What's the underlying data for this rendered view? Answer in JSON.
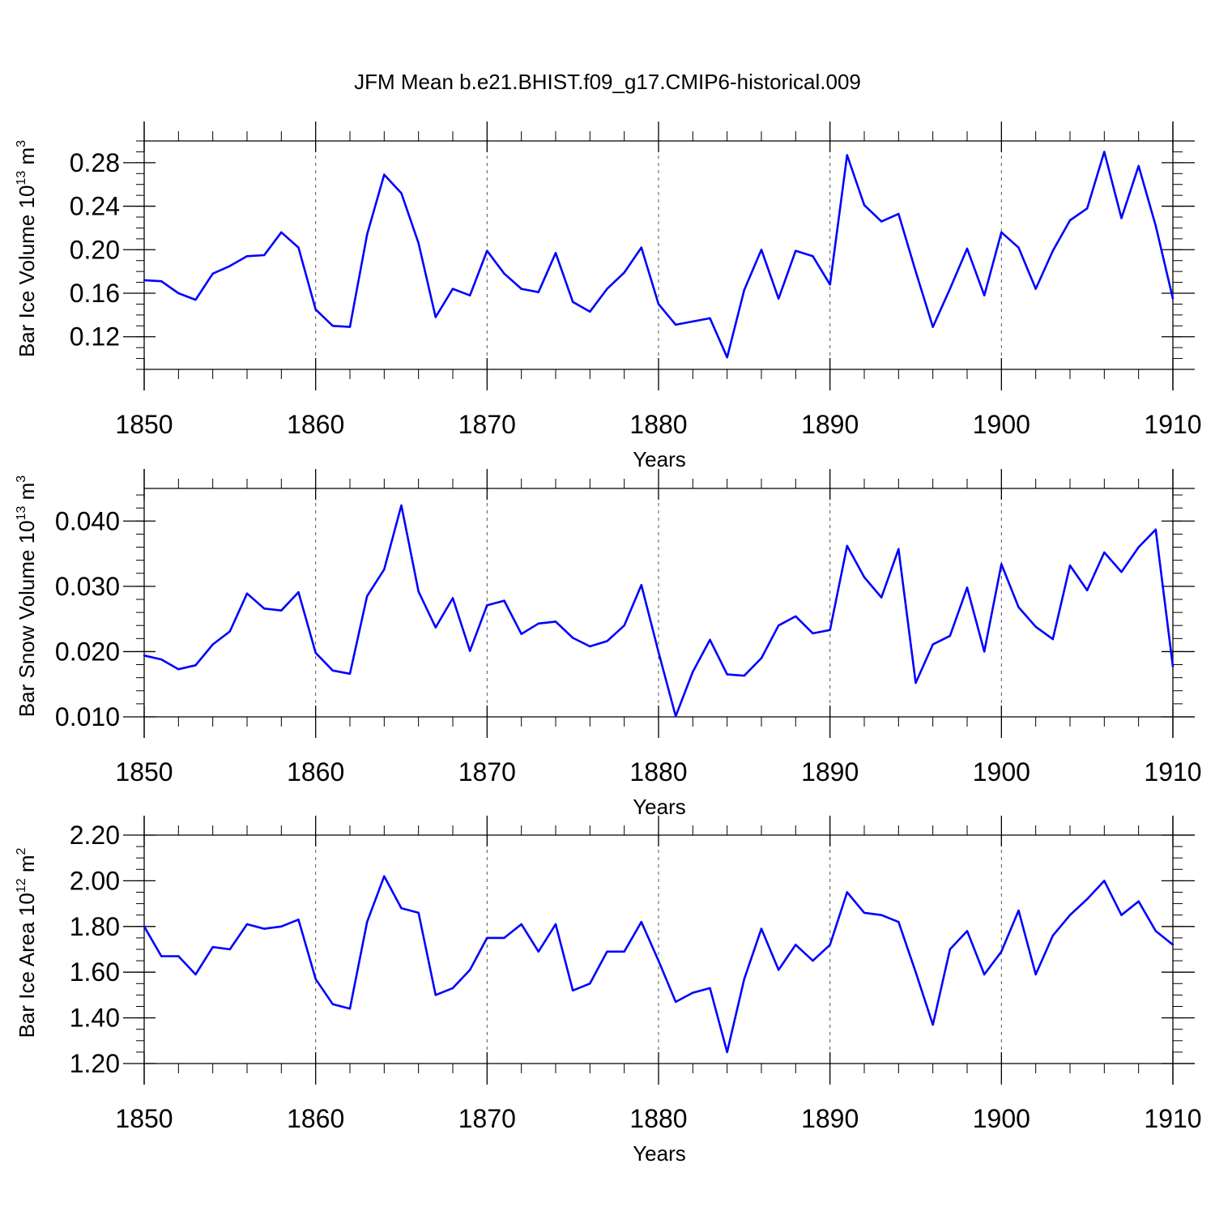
{
  "title": "JFM Mean b.e21.BHIST.f09_g17.CMIP6-historical.009",
  "colors": {
    "line": "#0000ff",
    "axis": "#000000",
    "grid": "#555555",
    "background": "#ffffff"
  },
  "chart_data": [
    {
      "type": "line",
      "ylabel": "Bar Ice Volume 10",
      "ylabel_exp": "13",
      "ylabel_unit": " m",
      "ylabel_unit_exp": "3",
      "xlabel": "Years",
      "xlim": [
        1850,
        1910
      ],
      "ylim": [
        0.09,
        0.3
      ],
      "yticks": [
        0.12,
        0.16,
        0.2,
        0.24,
        0.28
      ],
      "ytick_labels": [
        "0.12",
        "0.16",
        "0.20",
        "0.24",
        "0.28"
      ],
      "yminor_step": 0.01,
      "xticks": [
        1850,
        1860,
        1870,
        1880,
        1890,
        1900,
        1910
      ],
      "xtick_labels": [
        "1850",
        "1860",
        "1870",
        "1880",
        "1890",
        "1900",
        "1910"
      ],
      "x_start": 1850,
      "values": [
        0.172,
        0.171,
        0.16,
        0.154,
        0.178,
        0.185,
        0.194,
        0.195,
        0.216,
        0.202,
        0.145,
        0.13,
        0.129,
        0.214,
        0.269,
        0.252,
        0.206,
        0.138,
        0.164,
        0.158,
        0.199,
        0.178,
        0.164,
        0.161,
        0.197,
        0.152,
        0.143,
        0.164,
        0.179,
        0.202,
        0.15,
        0.131,
        0.134,
        0.137,
        0.101,
        0.163,
        0.2,
        0.155,
        0.199,
        0.194,
        0.168,
        0.287,
        0.241,
        0.226,
        0.233,
        0.18,
        0.129,
        0.164,
        0.201,
        0.158,
        0.216,
        0.202,
        0.164,
        0.199,
        0.227,
        0.238,
        0.29,
        0.229,
        0.277,
        0.222,
        0.155
      ]
    },
    {
      "type": "line",
      "ylabel": "Bar Snow Volume 10",
      "ylabel_exp": "13",
      "ylabel_unit": " m",
      "ylabel_unit_exp": "3",
      "xlabel": "Years",
      "xlim": [
        1850,
        1910
      ],
      "ylim": [
        0.01,
        0.045
      ],
      "yticks": [
        0.01,
        0.02,
        0.03,
        0.04
      ],
      "ytick_labels": [
        "0.010",
        "0.020",
        "0.030",
        "0.040"
      ],
      "yminor_step": 0.002,
      "xticks": [
        1850,
        1860,
        1870,
        1880,
        1890,
        1900,
        1910
      ],
      "xtick_labels": [
        "1850",
        "1860",
        "1870",
        "1880",
        "1890",
        "1900",
        "1910"
      ],
      "x_start": 1850,
      "values": [
        0.0194,
        0.0188,
        0.0173,
        0.0179,
        0.0211,
        0.0231,
        0.0289,
        0.0266,
        0.0263,
        0.0291,
        0.0198,
        0.0171,
        0.0166,
        0.0285,
        0.0326,
        0.0424,
        0.0292,
        0.0237,
        0.0282,
        0.0201,
        0.0271,
        0.0278,
        0.0227,
        0.0243,
        0.0246,
        0.0221,
        0.0208,
        0.0216,
        0.024,
        0.0302,
        0.0199,
        0.0101,
        0.0169,
        0.0218,
        0.0165,
        0.0163,
        0.019,
        0.024,
        0.0254,
        0.0228,
        0.0233,
        0.0362,
        0.0314,
        0.0283,
        0.0357,
        0.0152,
        0.0211,
        0.0224,
        0.0298,
        0.02,
        0.0334,
        0.0268,
        0.0238,
        0.0219,
        0.0332,
        0.0294,
        0.0352,
        0.0322,
        0.036,
        0.0387,
        0.0177
      ]
    },
    {
      "type": "line",
      "ylabel": "Bar Ice Area 10",
      "ylabel_exp": "12",
      "ylabel_unit": " m",
      "ylabel_unit_exp": "2",
      "xlabel": "Years",
      "xlim": [
        1850,
        1910
      ],
      "ylim": [
        1.2,
        2.2
      ],
      "yticks": [
        1.2,
        1.4,
        1.6,
        1.8,
        2.0,
        2.2
      ],
      "ytick_labels": [
        "1.20",
        "1.40",
        "1.60",
        "1.80",
        "2.00",
        "2.20"
      ],
      "yminor_step": 0.05,
      "xticks": [
        1850,
        1860,
        1870,
        1880,
        1890,
        1900,
        1910
      ],
      "xtick_labels": [
        "1850",
        "1860",
        "1870",
        "1880",
        "1890",
        "1900",
        "1910"
      ],
      "x_start": 1850,
      "values": [
        1.8,
        1.67,
        1.67,
        1.59,
        1.71,
        1.7,
        1.81,
        1.79,
        1.8,
        1.83,
        1.57,
        1.46,
        1.44,
        1.82,
        2.02,
        1.88,
        1.86,
        1.5,
        1.53,
        1.61,
        1.75,
        1.75,
        1.81,
        1.69,
        1.81,
        1.52,
        1.55,
        1.69,
        1.69,
        1.82,
        1.65,
        1.47,
        1.51,
        1.53,
        1.25,
        1.57,
        1.79,
        1.61,
        1.72,
        1.65,
        1.72,
        1.95,
        1.86,
        1.85,
        1.82,
        1.6,
        1.37,
        1.7,
        1.78,
        1.59,
        1.69,
        1.87,
        1.59,
        1.76,
        1.85,
        1.92,
        2.0,
        1.85,
        1.91,
        1.78,
        1.72
      ]
    }
  ]
}
